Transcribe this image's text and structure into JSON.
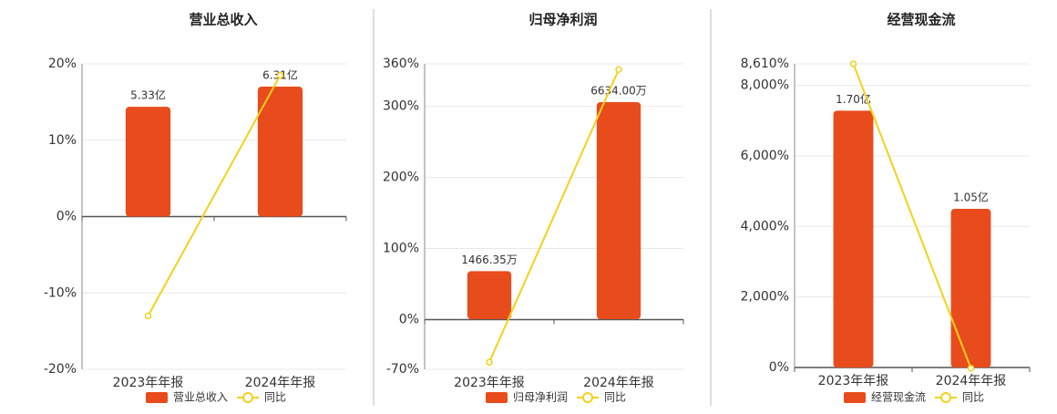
{
  "chart_data": [
    {
      "type": "bar_line",
      "title": "营业总收入",
      "categories": [
        "2023年年报",
        "2024年年报"
      ],
      "series": [
        {
          "name": "营业总收入",
          "color": "#e84c1c",
          "axis": "y2",
          "values": [
            5.33,
            6.31
          ],
          "value_labels": [
            "5.33亿",
            "6.31亿"
          ]
        },
        {
          "name": "同比",
          "color": "#f2d21b",
          "values": [
            -13,
            18.5
          ]
        }
      ],
      "ylim": [
        -20,
        20
      ],
      "yticks": [
        {
          "value": -20,
          "label": "-20%"
        },
        {
          "value": -10,
          "label": "-10%"
        },
        {
          "value": 0,
          "label": "0%"
        },
        {
          "value": 10,
          "label": "10%"
        },
        {
          "value": 20,
          "label": "20%"
        }
      ],
      "y2lim": [
        -7.42,
        7.42
      ],
      "grid": true
    },
    {
      "type": "bar_line",
      "title": "归母净利润",
      "categories": [
        "2023年年报",
        "2024年年报"
      ],
      "series": [
        {
          "name": "归母净利润",
          "color": "#e84c1c",
          "axis": "y2",
          "values": [
            1466.35,
            6634.0
          ],
          "value_labels": [
            "1466.35万",
            "6634.00万"
          ]
        },
        {
          "name": "同比",
          "color": "#f2d21b",
          "values": [
            -60,
            352
          ]
        }
      ],
      "ylim": [
        -70,
        360
      ],
      "yticks": [
        {
          "value": -70,
          "label": "-70%"
        },
        {
          "value": 0,
          "label": "0%"
        },
        {
          "value": 100,
          "label": "100%"
        },
        {
          "value": 200,
          "label": "200%"
        },
        {
          "value": 300,
          "label": "300%"
        },
        {
          "value": 360,
          "label": "360%"
        }
      ],
      "y2lim": [
        -1533,
        7805
      ],
      "grid": true
    },
    {
      "type": "bar_line",
      "title": "经营现金流",
      "categories": [
        "2023年年报",
        "2024年年报"
      ],
      "series": [
        {
          "name": "经营现金流",
          "color": "#e84c1c",
          "axis": "y2",
          "values": [
            1.7,
            1.05
          ],
          "value_labels": [
            "1.70亿",
            "1.05亿"
          ]
        },
        {
          "name": "同比",
          "color": "#f2d21b",
          "values": [
            8610,
            -20
          ]
        }
      ],
      "ylim": [
        0,
        8610
      ],
      "yticks": [
        {
          "value": 0,
          "label": "0%"
        },
        {
          "value": 2000,
          "label": "2,000%"
        },
        {
          "value": 4000,
          "label": "4,000%"
        },
        {
          "value": 6000,
          "label": "6,000%"
        },
        {
          "value": 8000,
          "label": "8,000%"
        },
        {
          "value": 8610,
          "label": "8,610%"
        }
      ],
      "y2lim": [
        0,
        2.01
      ],
      "grid": true
    }
  ]
}
